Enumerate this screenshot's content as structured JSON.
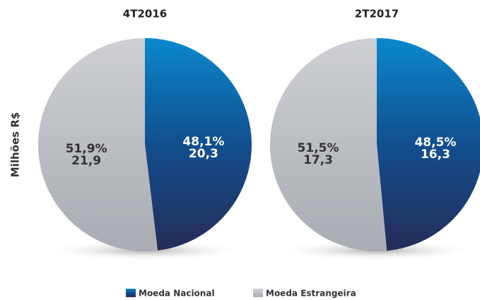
{
  "ylabel": "Milhões R$",
  "chart_data": [
    {
      "type": "pie",
      "title": "4T2016",
      "categories": [
        "Moeda Nacional",
        "Moeda Estrangeira"
      ],
      "values": [
        48.1,
        51.9
      ],
      "value_labels": [
        "48,1%",
        "51,9%"
      ],
      "amounts": [
        20.3,
        21.9
      ],
      "amount_labels": [
        "20,3",
        "21,9"
      ],
      "colors": [
        "#0a6fb0",
        "#c3c6cc"
      ]
    },
    {
      "type": "pie",
      "title": "2T2017",
      "categories": [
        "Moeda Nacional",
        "Moeda Estrangeira"
      ],
      "values": [
        48.5,
        51.5
      ],
      "value_labels": [
        "48,5%",
        "51,5%"
      ],
      "amounts": [
        16.3,
        17.3
      ],
      "amount_labels": [
        "16,3",
        "17,3"
      ],
      "colors": [
        "#0a6fb0",
        "#c3c6cc"
      ]
    }
  ]
}
